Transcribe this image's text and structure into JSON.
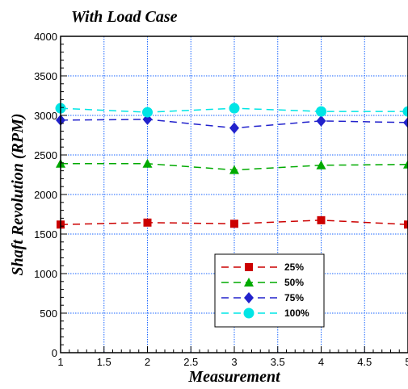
{
  "chart_data": {
    "type": "line",
    "title": "With Load Case",
    "xlabel": "Measurement",
    "ylabel": "Shaft Revolution (RPM)",
    "xlim": [
      1,
      5
    ],
    "ylim": [
      0,
      4000
    ],
    "x_ticks": [
      "1",
      "1.5",
      "2",
      "2.5",
      "3",
      "3.5",
      "4",
      "4.5",
      "5"
    ],
    "y_ticks": [
      "0",
      "500",
      "1000",
      "1500",
      "2000",
      "2500",
      "3000",
      "3500",
      "4000"
    ],
    "x_tick_values": [
      1,
      1.5,
      2,
      2.5,
      3,
      3.5,
      4,
      4.5,
      5
    ],
    "y_tick_values": [
      0,
      500,
      1000,
      1500,
      2000,
      2500,
      3000,
      3500,
      4000
    ],
    "grid": true,
    "legend_position": "bottom-center",
    "x": [
      1,
      2,
      3,
      4,
      5
    ],
    "series": [
      {
        "name": "25%",
        "values": [
          1620,
          1645,
          1630,
          1675,
          1620
        ],
        "color": "#cc0000",
        "marker": "square"
      },
      {
        "name": "50%",
        "values": [
          2390,
          2390,
          2310,
          2370,
          2380
        ],
        "color": "#00aa00",
        "marker": "triangle"
      },
      {
        "name": "75%",
        "values": [
          2940,
          2950,
          2840,
          2930,
          2910
        ],
        "color": "#2222cc",
        "marker": "diamond"
      },
      {
        "name": "100%",
        "values": [
          3090,
          3040,
          3090,
          3050,
          3050
        ],
        "color": "#00e5e5",
        "marker": "circle"
      }
    ]
  }
}
